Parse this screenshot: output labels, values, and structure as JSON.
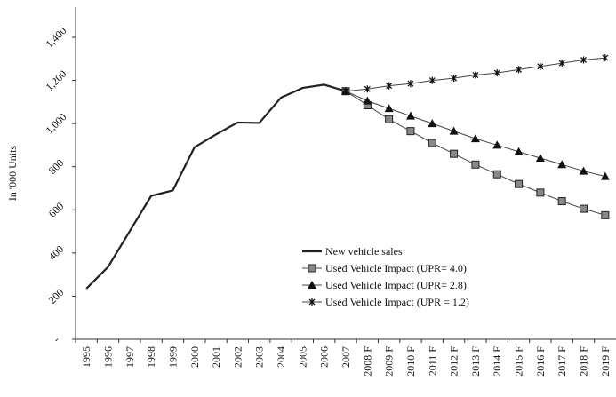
{
  "chart_data": {
    "type": "line",
    "y_label": "In '000 Units",
    "categories": [
      "1995",
      "1996",
      "1997",
      "1998",
      "1999",
      "2000",
      "2001",
      "2002",
      "2003",
      "2004",
      "2005",
      "2006",
      "2007",
      "2008 F",
      "2009 F",
      "2010 F",
      "2011 F",
      "2012 F",
      "2013 F",
      "2014 F",
      "2015 F",
      "2016 F",
      "2017 F",
      "2018 F",
      "2019 F"
    ],
    "series": [
      {
        "name": "New vehicle sales",
        "color": "#222222",
        "marker": "none",
        "values": [
          235,
          335,
          500,
          665,
          690,
          890,
          950,
          1005,
          1003,
          1120,
          1165,
          1180,
          1150,
          null,
          null,
          null,
          null,
          null,
          null,
          null,
          null,
          null,
          null,
          null,
          null
        ]
      },
      {
        "name": "Used Vehicle Impact (UPR= 4.0)",
        "color": "#444444",
        "marker": "square",
        "values": [
          null,
          null,
          null,
          null,
          null,
          null,
          null,
          null,
          null,
          null,
          null,
          null,
          1150,
          1085,
          1020,
          965,
          910,
          860,
          810,
          765,
          720,
          680,
          640,
          605,
          575
        ]
      },
      {
        "name": "Used Vehicle Impact (UPR= 2.8)",
        "color": "#444444",
        "marker": "triangle",
        "values": [
          null,
          null,
          null,
          null,
          null,
          null,
          null,
          null,
          null,
          null,
          null,
          null,
          1150,
          1105,
          1070,
          1035,
          1000,
          965,
          930,
          900,
          870,
          840,
          810,
          780,
          755
        ]
      },
      {
        "name": "Used Vehicle Impact (UPR = 1.2)",
        "color": "#444444",
        "marker": "cross",
        "values": [
          null,
          null,
          null,
          null,
          null,
          null,
          null,
          null,
          null,
          null,
          null,
          null,
          1150,
          1160,
          1175,
          1185,
          1200,
          1210,
          1225,
          1235,
          1250,
          1265,
          1280,
          1295,
          1305
        ]
      }
    ],
    "ylim": [
      0,
      1540
    ],
    "yticks": [
      {
        "value": 0,
        "label": "-"
      },
      200,
      400,
      600,
      800,
      {
        "value": 1000,
        "label": "1,000"
      },
      {
        "value": 1200,
        "label": "1,200"
      },
      {
        "value": 1400,
        "label": "1,400"
      }
    ],
    "legend": "lower right",
    "grid": false
  }
}
